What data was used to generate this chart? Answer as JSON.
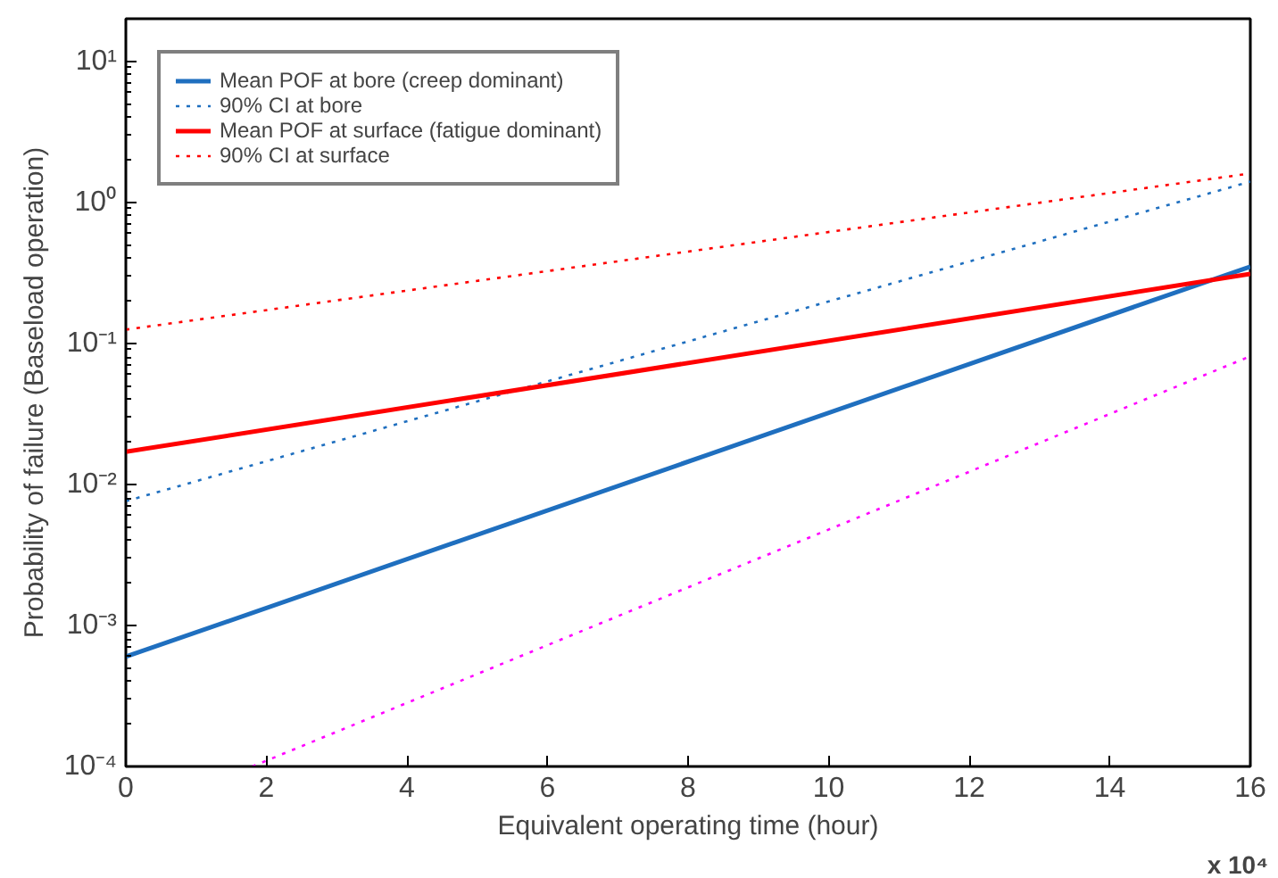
{
  "chart_data": {
    "type": "line",
    "xlabel": "Equivalent operating time (hour)",
    "ylabel": "Probability of failure (Baseload operation)",
    "log": "y",
    "grid": false,
    "legend": "top left",
    "marker": "none",
    "xlim": [
      0,
      16
    ],
    "xticks": [
      0,
      2,
      4,
      6,
      8,
      10,
      12,
      14,
      16
    ],
    "ylim": [
      0.0001,
      20
    ],
    "yticks": [
      {
        "value": 0.0001,
        "label": "10⁻⁴"
      },
      {
        "value": 0.001,
        "label": "10⁻³"
      },
      {
        "value": 0.01,
        "label": "10⁻²"
      },
      {
        "value": 0.1,
        "label": "10⁻¹"
      },
      {
        "value": 1,
        "label": "10⁰"
      },
      {
        "value": 10,
        "label": "10¹"
      }
    ],
    "annotations": [
      "x 10⁴"
    ],
    "series": [
      {
        "name": "Mean POF at bore (creep dominant)",
        "color": "#1f6fbf",
        "line_style": "solid",
        "x": [
          0,
          16
        ],
        "values": [
          0.0006,
          0.35
        ]
      },
      {
        "name": "90% CI at bore",
        "color": "#1f6fbf",
        "line_style": "dotted",
        "x": [
          0,
          16
        ],
        "values": [
          0.0076,
          1.4
        ]
      },
      {
        "name": "Mean POF at surface (fatigue dominant)",
        "color": "#ff0000",
        "line_style": "solid",
        "x": [
          0,
          16
        ],
        "values": [
          0.017,
          0.31
        ]
      },
      {
        "name": "90% CI at surface",
        "color": "#ff0000",
        "line_style": "dotted",
        "x": [
          0,
          16
        ],
        "values": [
          0.125,
          1.6
        ]
      },
      {
        "color": "#ff00ff",
        "line_style": "dotted",
        "x": [
          1.8,
          16
        ],
        "values": [
          0.0001,
          0.081
        ]
      }
    ]
  }
}
